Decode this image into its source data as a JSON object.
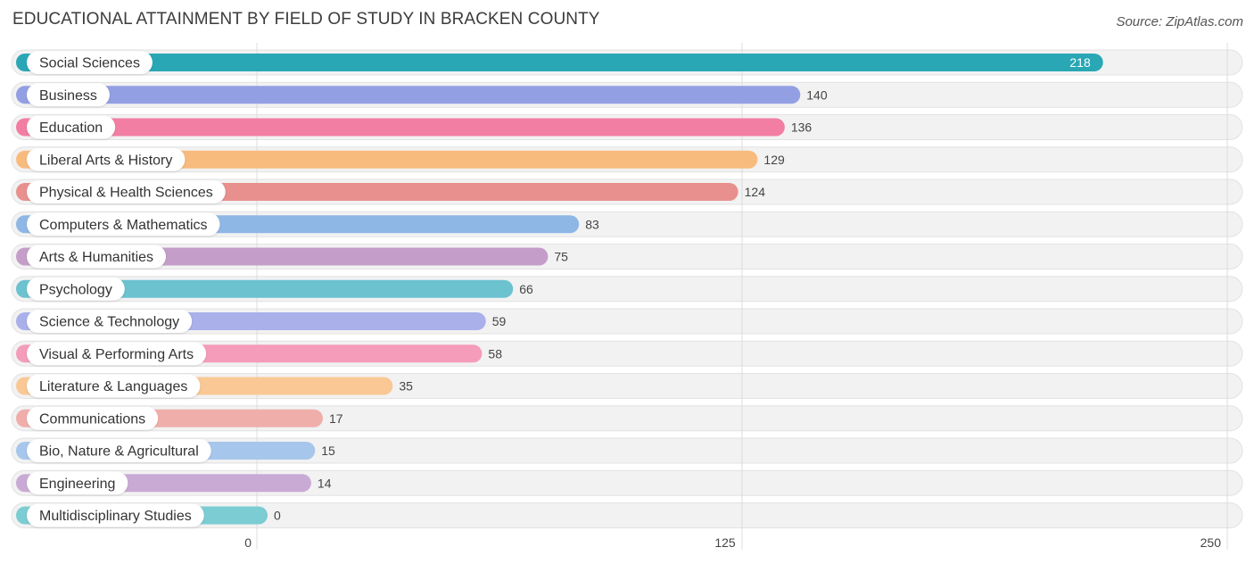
{
  "header": {
    "title": "EDUCATIONAL ATTAINMENT BY FIELD OF STUDY IN BRACKEN COUNTY",
    "source": "Source: ZipAtlas.com"
  },
  "chart_data": {
    "type": "bar",
    "orientation": "horizontal",
    "title": "EDUCATIONAL ATTAINMENT BY FIELD OF STUDY IN BRACKEN COUNTY",
    "xlabel": "",
    "ylabel": "",
    "xlim": [
      0,
      250
    ],
    "xticks": [
      0,
      125,
      250
    ],
    "xtick_labels": [
      "0",
      "125",
      "250"
    ],
    "grid": true,
    "categories": [
      "Social Sciences",
      "Business",
      "Education",
      "Liberal Arts & History",
      "Physical & Health Sciences",
      "Computers & Mathematics",
      "Arts & Humanities",
      "Psychology",
      "Science & Technology",
      "Visual & Performing Arts",
      "Literature & Languages",
      "Communications",
      "Bio, Nature & Agricultural",
      "Engineering",
      "Multidisciplinary Studies"
    ],
    "values": [
      218,
      140,
      136,
      129,
      124,
      83,
      75,
      66,
      59,
      58,
      35,
      17,
      15,
      14,
      0
    ],
    "value_labels": [
      "218",
      "140",
      "136",
      "129",
      "124",
      "83",
      "75",
      "66",
      "59",
      "58",
      "35",
      "17",
      "15",
      "14",
      "0"
    ],
    "colors": [
      "#29a7b5",
      "#939fe3",
      "#f27ea4",
      "#f8bb7e",
      "#e8908d",
      "#8fb7e6",
      "#c49ec9",
      "#6cc2cf",
      "#a9b0ea",
      "#f49cb9",
      "#f9c895",
      "#f0aeab",
      "#a7c6ec",
      "#c9aad5",
      "#7cccd3"
    ]
  }
}
